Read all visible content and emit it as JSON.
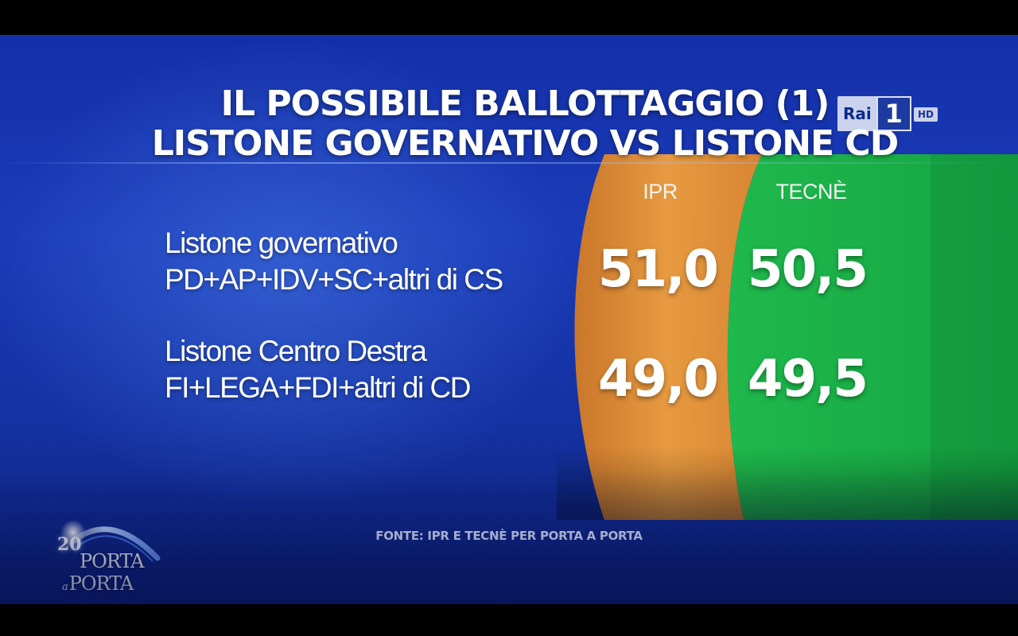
{
  "title": {
    "line1": "IL POSSIBILE BALLOTTAGGIO (1)",
    "line2": "LISTONE GOVERNATIVO VS LISTONE CD"
  },
  "columns": {
    "ipr": "IPR",
    "tecne": "TECNÈ"
  },
  "rows": [
    {
      "name": "Listone governativo",
      "detail": "PD+AP+IDV+SC+altri di CS",
      "ipr": "51,0",
      "tecne": "50,5"
    },
    {
      "name": "Listone Centro Destra",
      "detail": "FI+LEGA+FDI+altri di CD",
      "ipr": "49,0",
      "tecne": "49,5"
    }
  ],
  "source": "FONTE: IPR E TECNÈ PER PORTA A PORTA",
  "channel": {
    "brand": "Rai",
    "number": "1",
    "badge": "HD"
  },
  "show_logo": {
    "anniversary": "20",
    "word1": "PORTA",
    "connector": "a",
    "word2": "PORTA"
  },
  "colors": {
    "background": "#1a3bb8",
    "ipr_band": "#e8963a",
    "tecne_band": "#17b44a"
  }
}
